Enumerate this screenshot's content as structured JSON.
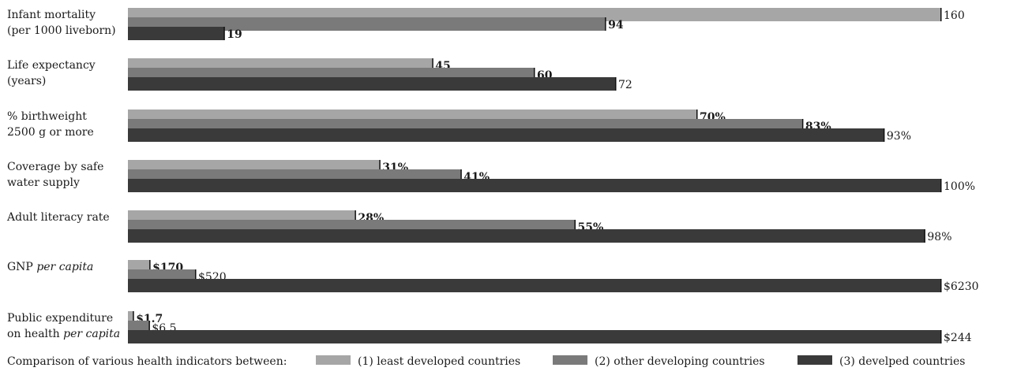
{
  "chart_data": {
    "type": "bar",
    "orientation": "horizontal",
    "grid": false,
    "legend_placement": "bottom",
    "categories": [
      {
        "lines": [
          [
            {
              "t": "Infant mortality"
            }
          ],
          [
            {
              "t": "(per 1000 liveborn)"
            }
          ]
        ]
      },
      {
        "lines": [
          [
            {
              "t": "Life expectancy"
            }
          ],
          [
            {
              "t": "(years)"
            }
          ]
        ]
      },
      {
        "lines": [
          [
            {
              "t": "% birthweight"
            }
          ],
          [
            {
              "t": "2500 g or more"
            }
          ]
        ]
      },
      {
        "lines": [
          [
            {
              "t": "Coverage by safe"
            }
          ],
          [
            {
              "t": "water supply"
            }
          ]
        ]
      },
      {
        "lines": [
          [
            {
              "t": "Adult literacy rate"
            }
          ]
        ]
      },
      {
        "lines": [
          [
            {
              "t": "GNP "
            },
            {
              "t": "per capita",
              "italic": true
            }
          ]
        ]
      },
      {
        "lines": [
          [
            {
              "t": "Public expenditure"
            }
          ],
          [
            {
              "t": "on health "
            },
            {
              "t": "per capita",
              "italic": true
            }
          ]
        ]
      }
    ],
    "series": [
      {
        "name": "(1) least developed countries",
        "color": "#a6a6a6",
        "values": [
          160,
          45,
          70,
          31,
          28,
          170,
          1.7
        ],
        "labels": [
          "160",
          "45",
          "70%",
          "31%",
          "28%",
          "$170",
          "$1.7"
        ],
        "label_bold": [
          false,
          true,
          true,
          true,
          true,
          true,
          true
        ]
      },
      {
        "name": "(2) other developing countries",
        "color": "#7a7a7a",
        "values": [
          94,
          60,
          83,
          41,
          55,
          520,
          6.5
        ],
        "labels": [
          "94",
          "60",
          "83%",
          "41%",
          "55%",
          "$520",
          "$6.5"
        ],
        "label_bold": [
          true,
          true,
          true,
          true,
          true,
          false,
          false
        ]
      },
      {
        "name": "(3) develped countries",
        "color": "#3a3a3a",
        "values": [
          19,
          72,
          93,
          100,
          98,
          6230,
          244
        ],
        "labels": [
          "19",
          "72",
          "93%",
          "100%",
          "98%",
          "$6230",
          "$244"
        ],
        "label_bold": [
          true,
          false,
          false,
          false,
          false,
          false,
          false
        ]
      }
    ],
    "row_max": [
      160,
      120,
      100,
      100,
      100,
      6230,
      244
    ],
    "legend_title": "Comparison of various health indicators between:"
  }
}
